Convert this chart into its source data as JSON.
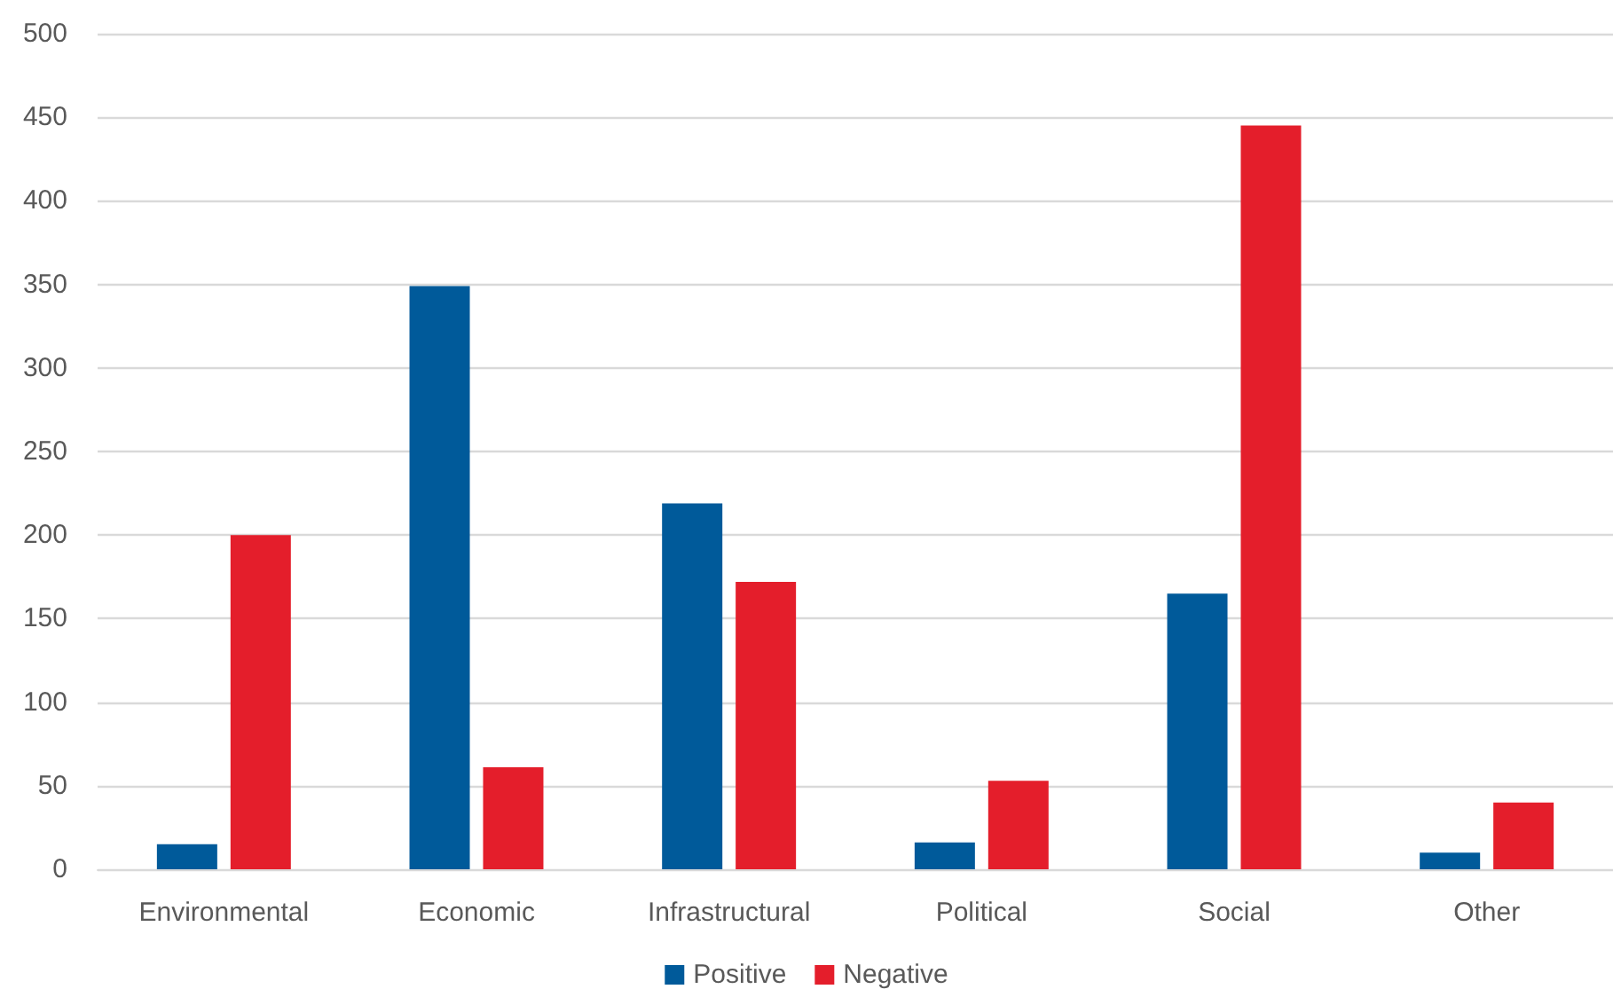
{
  "chart_data": {
    "type": "bar",
    "categories": [
      "Environmental",
      "Economic",
      "Infrastructural",
      "Political",
      "Social",
      "Other"
    ],
    "series": [
      {
        "name": "Positive",
        "color": "#005a9a",
        "values": [
          15,
          349,
          219,
          16,
          165,
          10
        ]
      },
      {
        "name": "Negative",
        "color": "#e41e2b",
        "values": [
          200,
          61,
          172,
          53,
          445,
          40
        ]
      }
    ],
    "ylim": [
      0,
      500
    ],
    "yticks": [
      0,
      50,
      100,
      150,
      200,
      250,
      300,
      350,
      400,
      450,
      500
    ],
    "grid": "y",
    "legend": "bottom"
  }
}
